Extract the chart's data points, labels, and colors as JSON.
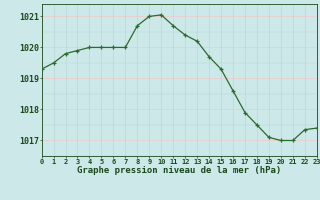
{
  "hours": [
    0,
    1,
    2,
    3,
    4,
    5,
    6,
    7,
    8,
    9,
    10,
    11,
    12,
    13,
    14,
    15,
    16,
    17,
    18,
    19,
    20,
    21,
    22,
    23
  ],
  "pressure": [
    1019.3,
    1019.5,
    1019.8,
    1019.9,
    1020.0,
    1020.0,
    1020.0,
    1020.0,
    1020.7,
    1021.0,
    1021.05,
    1020.7,
    1020.4,
    1020.2,
    1019.7,
    1019.3,
    1018.6,
    1017.9,
    1017.5,
    1017.1,
    1017.0,
    1017.0,
    1017.35,
    1017.4
  ],
  "line_color": "#2d6a2d",
  "marker_color": "#2d6a2d",
  "bg_color": "#cce8e8",
  "grid_color_v": "#b8d8d8",
  "grid_color_h": "#f0c8c8",
  "xlabel": "Graphe pression niveau de la mer (hPa)",
  "xlabel_color": "#1a4a1a",
  "tick_color": "#1a4a1a",
  "ylim": [
    1016.5,
    1021.4
  ],
  "yticks": [
    1017,
    1018,
    1019,
    1020,
    1021
  ],
  "xlim": [
    0,
    23
  ]
}
